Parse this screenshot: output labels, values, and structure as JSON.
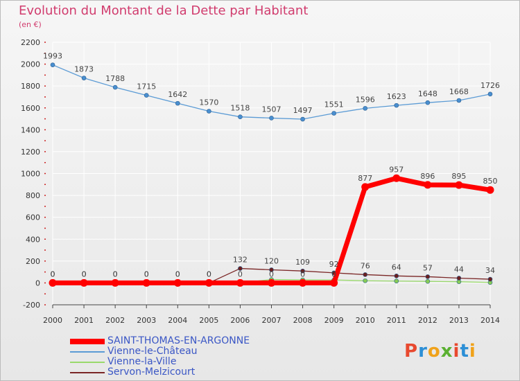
{
  "title": "Evolution du Montant de la Dette par Habitant",
  "unit_label": "(en €)",
  "logo": {
    "text": "Proxiti",
    "colors": [
      "#e8492f",
      "#2c8fd6",
      "#f0a21a",
      "#5ab031",
      "#e8492f",
      "#2c8fd6",
      "#f0a21a"
    ]
  },
  "chart_data": {
    "type": "line",
    "x": [
      2000,
      2001,
      2002,
      2003,
      2004,
      2005,
      2006,
      2007,
      2008,
      2009,
      2010,
      2011,
      2012,
      2013,
      2014
    ],
    "ylim": [
      -200,
      2200
    ],
    "yticks": [
      -200,
      0,
      200,
      400,
      600,
      800,
      1000,
      1200,
      1400,
      1600,
      1800,
      2000,
      2200
    ],
    "grid": true,
    "legend_position": "bottom-left",
    "series": [
      {
        "name": "Vienne-le-Château",
        "color": "#5b9bd5",
        "marker": "#4a8fd0",
        "stroke_width": 1.3,
        "values": [
          1993,
          1873,
          1788,
          1715,
          1642,
          1570,
          1518,
          1507,
          1497,
          1551,
          1596,
          1623,
          1648,
          1668,
          1726
        ],
        "show_labels": true,
        "label_color": "#444444"
      },
      {
        "name": "Vienne-la-Ville",
        "color": "#99d96b",
        "marker": "#88cc55",
        "stroke_width": 1.3,
        "values": [
          0,
          0,
          0,
          0,
          0,
          0,
          0,
          31,
          28,
          27,
          20,
          17,
          14,
          11,
          4
        ],
        "show_labels": false
      },
      {
        "name": "Servon-Melzicourt",
        "color": "#7a2626",
        "marker": "#6b1f1f",
        "stroke_width": 1.3,
        "values": [
          0,
          0,
          0,
          0,
          0,
          0,
          132,
          120,
          109,
          92,
          76,
          64,
          57,
          44,
          34
        ],
        "show_labels": true,
        "label_color": "#444444"
      },
      {
        "name": "SAINT-THOMAS-EN-ARGONNE",
        "color": "#ff0000",
        "marker": "#ff0000",
        "stroke_width": 7,
        "values": [
          0,
          0,
          0,
          0,
          0,
          0,
          0,
          0,
          0,
          0,
          877,
          957,
          896,
          895,
          850
        ],
        "show_labels": true,
        "label_color": "#444444"
      }
    ],
    "legend_order": [
      "SAINT-THOMAS-EN-ARGONNE",
      "Vienne-le-Château",
      "Vienne-la-Ville",
      "Servon-Melzicourt"
    ]
  }
}
